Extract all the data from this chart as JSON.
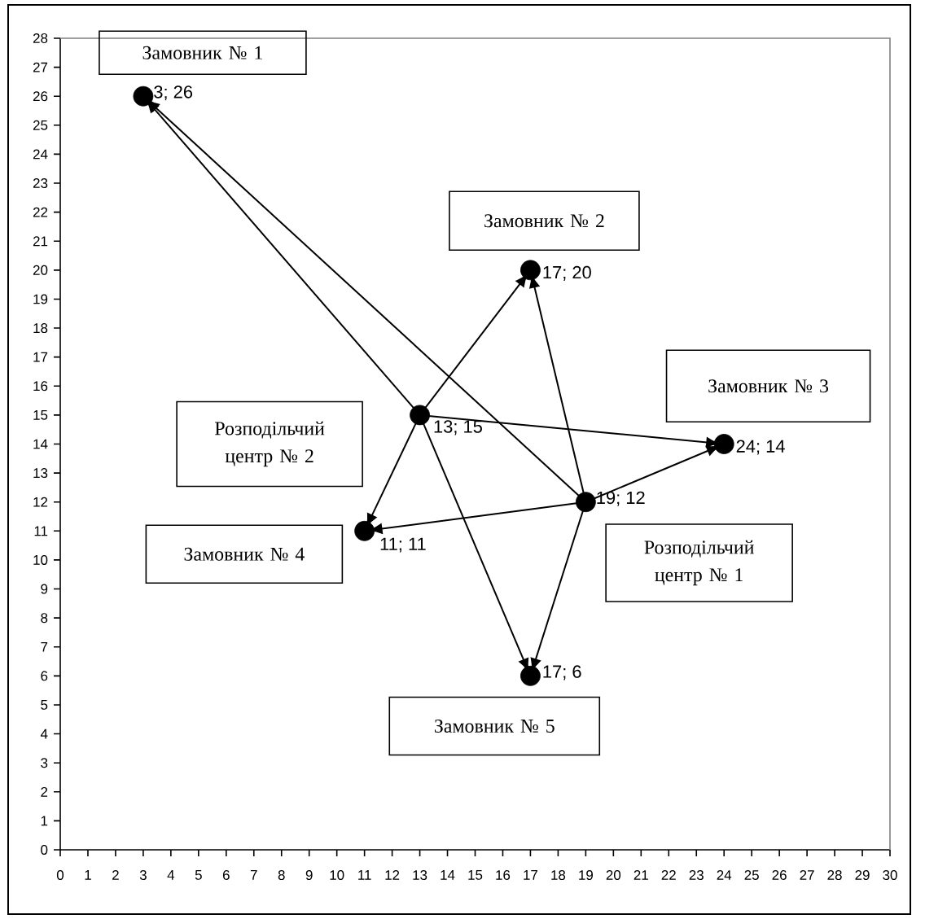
{
  "chart_data": {
    "type": "scatter",
    "xlim": [
      0,
      30
    ],
    "ylim": [
      0,
      28
    ],
    "xticks": [
      0,
      1,
      2,
      3,
      4,
      5,
      6,
      7,
      8,
      9,
      10,
      11,
      12,
      13,
      14,
      15,
      16,
      17,
      18,
      19,
      20,
      21,
      22,
      23,
      24,
      25,
      26,
      27,
      28,
      29,
      30
    ],
    "yticks": [
      0,
      1,
      2,
      3,
      4,
      5,
      6,
      7,
      8,
      9,
      10,
      11,
      12,
      13,
      14,
      15,
      16,
      17,
      18,
      19,
      20,
      21,
      22,
      23,
      24,
      25,
      26,
      27,
      28
    ],
    "series": [
      {
        "color": "#000000",
        "marker": "circle",
        "x": [
          3,
          17,
          24,
          11,
          17,
          19,
          13
        ],
        "values": [
          26,
          20,
          14,
          11,
          6,
          12,
          15
        ],
        "value_labels": [
          "3; 26",
          "17; 20",
          "24; 14",
          "11; 11",
          "17; 6",
          "19; 12",
          "13; 15"
        ]
      },
      {
        "type": "line",
        "color": "#000000",
        "x": [
          13,
          3
        ],
        "values": [
          15,
          26
        ]
      },
      {
        "type": "line",
        "color": "#000000",
        "x": [
          13,
          17
        ],
        "values": [
          15,
          20
        ]
      },
      {
        "type": "line",
        "color": "#000000",
        "x": [
          13,
          24
        ],
        "values": [
          15,
          14
        ]
      },
      {
        "type": "line",
        "color": "#000000",
        "x": [
          13,
          11
        ],
        "values": [
          15,
          11
        ]
      },
      {
        "type": "line",
        "color": "#000000",
        "x": [
          13,
          17
        ],
        "values": [
          15,
          6
        ]
      },
      {
        "type": "line",
        "color": "#000000",
        "x": [
          19,
          3
        ],
        "values": [
          12,
          26
        ]
      },
      {
        "type": "line",
        "color": "#000000",
        "x": [
          19,
          17
        ],
        "values": [
          12,
          20
        ]
      },
      {
        "type": "line",
        "color": "#000000",
        "x": [
          19,
          24
        ],
        "values": [
          12,
          14
        ]
      },
      {
        "type": "line",
        "color": "#000000",
        "x": [
          19,
          11
        ],
        "values": [
          12,
          11
        ]
      },
      {
        "type": "line",
        "color": "#000000",
        "x": [
          19,
          17
        ],
        "values": [
          12,
          6
        ]
      }
    ],
    "annotations": [
      {
        "text": "Замовник № 1",
        "x": 3,
        "y": 26
      },
      {
        "text": "Замовник № 2",
        "x": 17,
        "y": 20
      },
      {
        "text": "Замовник № 3",
        "x": 24,
        "y": 14
      },
      "Замовник № 4",
      {
        "text": "Замовник № 5",
        "x": 17,
        "y": 6
      },
      "Розподільчий центр № 1",
      "Розподільчий центр № 2"
    ]
  }
}
